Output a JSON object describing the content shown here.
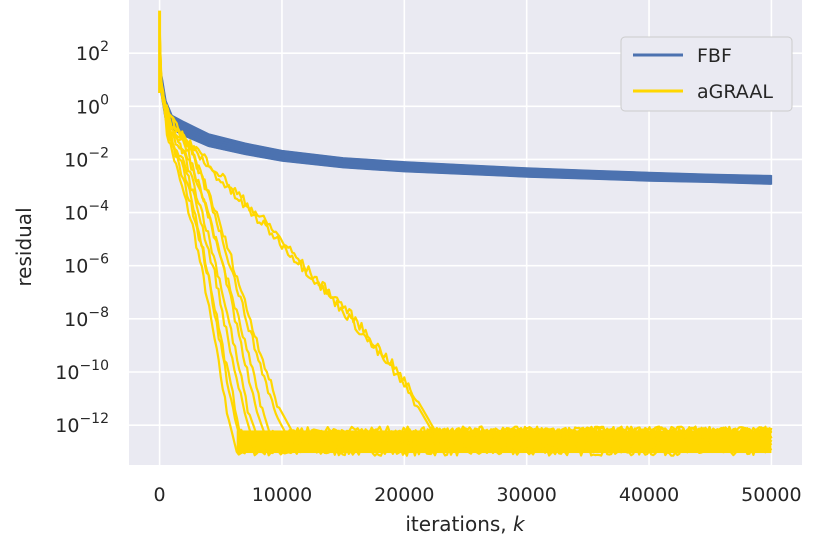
{
  "chart_data": {
    "type": "line",
    "xlabel_text": "iterations, ",
    "xlabel_var": "k",
    "ylabel": "residual",
    "xlim": [
      -2500,
      52500
    ],
    "ylim_log10": [
      -13.5,
      4.0
    ],
    "y_scale": "log",
    "grid": true,
    "legend_position": "top-right",
    "x_ticks": [
      {
        "value": 0,
        "label": "0"
      },
      {
        "value": 10000,
        "label": "10000"
      },
      {
        "value": 20000,
        "label": "20000"
      },
      {
        "value": 30000,
        "label": "30000"
      },
      {
        "value": 40000,
        "label": "40000"
      },
      {
        "value": 50000,
        "label": "50000"
      }
    ],
    "y_ticks": [
      {
        "exp": 2,
        "base": "10",
        "power": "2"
      },
      {
        "exp": 0,
        "base": "10",
        "power": "0"
      },
      {
        "exp": -2,
        "base": "10",
        "power": "−2"
      },
      {
        "exp": -4,
        "base": "10",
        "power": "−4"
      },
      {
        "exp": -6,
        "base": "10",
        "power": "−6"
      },
      {
        "exp": -8,
        "base": "10",
        "power": "−8"
      },
      {
        "exp": -10,
        "base": "10",
        "power": "−10"
      },
      {
        "exp": -12,
        "base": "10",
        "power": "−12"
      }
    ],
    "series": [
      {
        "name": "FBF",
        "color": "#4c72b0",
        "band_lower_log10": [
          [
            0,
            0.9
          ],
          [
            500,
            -0.5
          ],
          [
            1000,
            -0.85
          ],
          [
            2000,
            -1.1
          ],
          [
            4000,
            -1.5
          ],
          [
            7000,
            -1.8
          ],
          [
            10000,
            -2.05
          ],
          [
            15000,
            -2.3
          ],
          [
            20000,
            -2.45
          ],
          [
            25000,
            -2.55
          ],
          [
            30000,
            -2.65
          ],
          [
            35000,
            -2.72
          ],
          [
            40000,
            -2.8
          ],
          [
            45000,
            -2.85
          ],
          [
            50000,
            -2.92
          ]
        ],
        "band_upper_log10": [
          [
            0,
            1.6
          ],
          [
            500,
            0.2
          ],
          [
            1000,
            -0.35
          ],
          [
            2000,
            -0.6
          ],
          [
            4000,
            -1.05
          ],
          [
            7000,
            -1.4
          ],
          [
            10000,
            -1.68
          ],
          [
            15000,
            -1.95
          ],
          [
            20000,
            -2.1
          ],
          [
            25000,
            -2.22
          ],
          [
            30000,
            -2.33
          ],
          [
            35000,
            -2.42
          ],
          [
            40000,
            -2.5
          ],
          [
            45000,
            -2.57
          ],
          [
            50000,
            -2.62
          ]
        ]
      },
      {
        "name": "aGRAAL",
        "color": "#ffd700",
        "runs_log10": [
          [
            [
              0,
              3.2
            ],
            [
              120,
              1.0
            ],
            [
              600,
              -1.0
            ],
            [
              1500,
              -2.5
            ],
            [
              2700,
              -4.5
            ],
            [
              3600,
              -6.5
            ],
            [
              4500,
              -8.8
            ],
            [
              5500,
              -11.5
            ],
            [
              6300,
              -13.0
            ],
            [
              50000,
              -13.0
            ]
          ],
          [
            [
              0,
              2.5
            ],
            [
              150,
              0.8
            ],
            [
              700,
              -0.8
            ],
            [
              1600,
              -2.3
            ],
            [
              2900,
              -4.2
            ],
            [
              4000,
              -6.5
            ],
            [
              5000,
              -9.0
            ],
            [
              6000,
              -11.5
            ],
            [
              6800,
              -12.85
            ],
            [
              50000,
              -12.85
            ]
          ],
          [
            [
              0,
              2.8
            ],
            [
              180,
              0.6
            ],
            [
              800,
              -1.2
            ],
            [
              1800,
              -2.2
            ],
            [
              3100,
              -4.4
            ],
            [
              4200,
              -6.8
            ],
            [
              5300,
              -9.4
            ],
            [
              6500,
              -12.0
            ],
            [
              7200,
              -12.7
            ],
            [
              50000,
              -12.7
            ]
          ],
          [
            [
              0,
              3.0
            ],
            [
              140,
              0.9
            ],
            [
              750,
              -1.0
            ],
            [
              1900,
              -2.0
            ],
            [
              3200,
              -4.0
            ],
            [
              4500,
              -6.3
            ],
            [
              5600,
              -8.8
            ],
            [
              6800,
              -11.3
            ],
            [
              7600,
              -12.55
            ],
            [
              50000,
              -12.55
            ]
          ],
          [
            [
              0,
              2.2
            ],
            [
              200,
              0.5
            ],
            [
              900,
              -0.9
            ],
            [
              2000,
              -1.8
            ],
            [
              3500,
              -4.0
            ],
            [
              4900,
              -6.5
            ],
            [
              6000,
              -8.8
            ],
            [
              7200,
              -11.4
            ],
            [
              8000,
              -12.45
            ],
            [
              50000,
              -12.45
            ]
          ],
          [
            [
              0,
              1.9
            ],
            [
              220,
              0.4
            ],
            [
              1000,
              -0.8
            ],
            [
              2200,
              -1.5
            ],
            [
              3800,
              -3.8
            ],
            [
              5300,
              -6.2
            ],
            [
              6500,
              -8.7
            ],
            [
              7800,
              -11.3
            ],
            [
              8600,
              -12.35
            ],
            [
              50000,
              -12.35
            ]
          ],
          [
            [
              0,
              2.6
            ],
            [
              160,
              0.7
            ],
            [
              850,
              -1.0
            ],
            [
              2100,
              -1.7
            ],
            [
              3600,
              -3.5
            ],
            [
              5100,
              -5.8
            ],
            [
              6800,
              -8.6
            ],
            [
              8400,
              -11.4
            ],
            [
              9200,
              -12.6
            ],
            [
              50000,
              -12.6
            ]
          ],
          [
            [
              0,
              2.4
            ],
            [
              180,
              0.6
            ],
            [
              900,
              -0.9
            ],
            [
              2500,
              -1.6
            ],
            [
              4200,
              -3.6
            ],
            [
              5800,
              -6.0
            ],
            [
              7600,
              -8.8
            ],
            [
              9500,
              -11.6
            ],
            [
              10300,
              -12.3
            ],
            [
              50000,
              -12.3
            ]
          ],
          [
            [
              0,
              2.1
            ],
            [
              200,
              0.5
            ],
            [
              1000,
              -0.7
            ],
            [
              2400,
              -1.5
            ],
            [
              4000,
              -3.2
            ],
            [
              5700,
              -5.5
            ],
            [
              7600,
              -8.3
            ],
            [
              9600,
              -11.2
            ],
            [
              10800,
              -12.2
            ],
            [
              50000,
              -12.2
            ]
          ],
          [
            [
              0,
              1.8
            ],
            [
              250,
              0.3
            ],
            [
              1100,
              -0.6
            ],
            [
              2000,
              -1.2
            ],
            [
              3000,
              -1.6
            ],
            [
              5000,
              -2.6
            ],
            [
              7000,
              -3.6
            ],
            [
              9000,
              -4.5
            ],
            [
              11000,
              -5.6
            ],
            [
              13000,
              -6.6
            ],
            [
              15000,
              -7.5
            ],
            [
              17000,
              -8.6
            ],
            [
              19000,
              -9.7
            ],
            [
              21000,
              -11.0
            ],
            [
              22500,
              -12.2
            ],
            [
              50000,
              -12.2
            ]
          ],
          [
            [
              0,
              1.7
            ],
            [
              250,
              0.3
            ],
            [
              1200,
              -0.7
            ],
            [
              2300,
              -1.4
            ],
            [
              3300,
              -1.9
            ],
            [
              5000,
              -2.8
            ],
            [
              7000,
              -3.8
            ],
            [
              9000,
              -4.7
            ],
            [
              11000,
              -5.7
            ],
            [
              13000,
              -6.7
            ],
            [
              15000,
              -7.7
            ],
            [
              17000,
              -8.8
            ],
            [
              19000,
              -9.9
            ],
            [
              21000,
              -11.2
            ],
            [
              22300,
              -12.25
            ],
            [
              50000,
              -12.25
            ]
          ]
        ],
        "floor_band_log10": [
          -13.05,
          -12.2
        ]
      }
    ]
  }
}
